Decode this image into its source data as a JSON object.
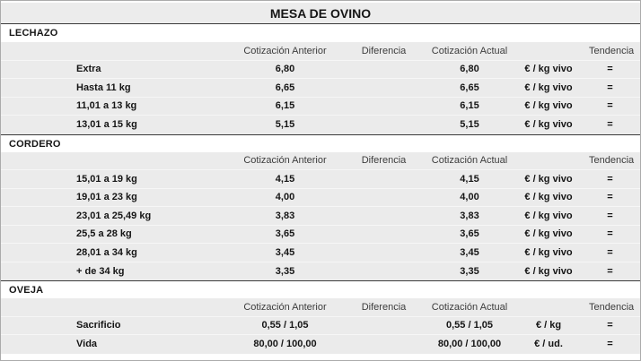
{
  "title": "MESA DE OVINO",
  "columns": {
    "anterior": "Cotización Anterior",
    "diferencia": "Diferencia",
    "actual": "Cotización Actual",
    "tendencia": "Tendencia"
  },
  "colors": {
    "block_bg": "#ebebeb",
    "section_bg": "#ffffff",
    "title_bg": "#ececec",
    "border_dark": "#3a3a3a",
    "outer_border": "#ababab"
  },
  "sections": [
    {
      "name": "LECHAZO",
      "rows": [
        {
          "label": "Extra",
          "anterior": "6,80",
          "diferencia": "",
          "actual": "6,80",
          "unit": "€ / kg vivo",
          "tendencia": "="
        },
        {
          "label": "Hasta 11 kg",
          "anterior": "6,65",
          "diferencia": "",
          "actual": "6,65",
          "unit": "€ / kg vivo",
          "tendencia": "="
        },
        {
          "label": "11,01 a 13 kg",
          "anterior": "6,15",
          "diferencia": "",
          "actual": "6,15",
          "unit": "€ / kg vivo",
          "tendencia": "="
        },
        {
          "label": "13,01 a 15 kg",
          "anterior": "5,15",
          "diferencia": "",
          "actual": "5,15",
          "unit": "€ / kg vivo",
          "tendencia": "="
        }
      ]
    },
    {
      "name": "CORDERO",
      "rows": [
        {
          "label": "15,01 a 19 kg",
          "anterior": "4,15",
          "diferencia": "",
          "actual": "4,15",
          "unit": "€ / kg vivo",
          "tendencia": "="
        },
        {
          "label": "19,01 a 23 kg",
          "anterior": "4,00",
          "diferencia": "",
          "actual": "4,00",
          "unit": "€ / kg vivo",
          "tendencia": "="
        },
        {
          "label": "23,01 a 25,49 kg",
          "anterior": "3,83",
          "diferencia": "",
          "actual": "3,83",
          "unit": "€ / kg vivo",
          "tendencia": "="
        },
        {
          "label": "25,5 a 28 kg",
          "anterior": "3,65",
          "diferencia": "",
          "actual": "3,65",
          "unit": "€ / kg vivo",
          "tendencia": "="
        },
        {
          "label": "28,01 a 34 kg",
          "anterior": "3,45",
          "diferencia": "",
          "actual": "3,45",
          "unit": "€ / kg vivo",
          "tendencia": "="
        },
        {
          "label": "+ de 34 kg",
          "anterior": "3,35",
          "diferencia": "",
          "actual": "3,35",
          "unit": "€ / kg vivo",
          "tendencia": "="
        }
      ]
    },
    {
      "name": "OVEJA",
      "rows": [
        {
          "label": "Sacrificio",
          "anterior": "0,55 / 1,05",
          "diferencia": "",
          "actual": "0,55 / 1,05",
          "unit": "€ / kg",
          "tendencia": "="
        },
        {
          "label": "Vida",
          "anterior": "80,00 / 100,00",
          "diferencia": "",
          "actual": "80,00 / 100,00",
          "unit": "€ / ud.",
          "tendencia": "="
        }
      ]
    }
  ]
}
